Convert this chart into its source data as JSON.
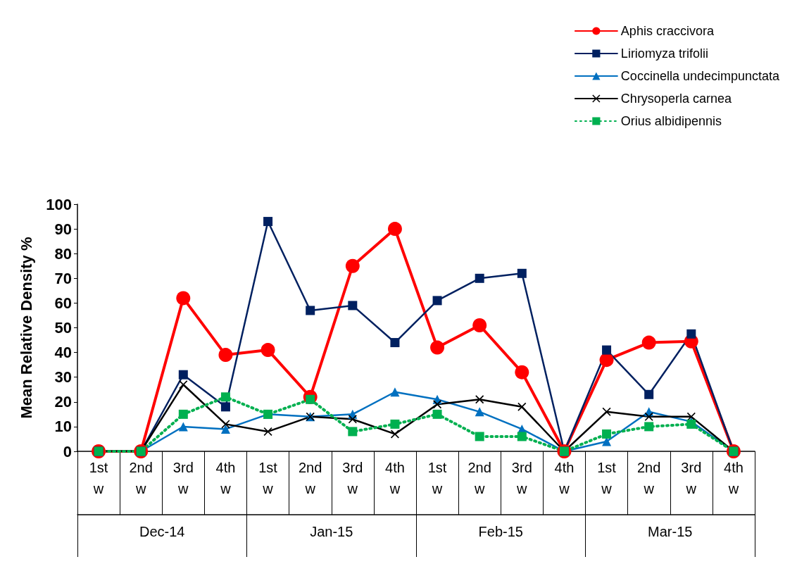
{
  "chart_data": {
    "type": "line",
    "ylabel": "Mean Relative Density %",
    "categories": [
      "1st w",
      "2nd w",
      "3rd w",
      "4th w",
      "1st w",
      "2nd w",
      "3rd w",
      "4th w",
      "1st w",
      "2nd w",
      "3rd w",
      "4th w",
      "1st w",
      "2nd w",
      "3rd w",
      "4th w"
    ],
    "annotations": [
      "Dec-14",
      "Jan-15",
      "Feb-15",
      "Mar-15"
    ],
    "series": [
      {
        "name": "Aphis craccivora",
        "color": "#ff0000",
        "marker": "circle",
        "line_style": "solid",
        "values": [
          0,
          0,
          62,
          39,
          41,
          22,
          75,
          90,
          42,
          51,
          32,
          0,
          37,
          44,
          44.5,
          0
        ]
      },
      {
        "name": "Liriomyza trifolii",
        "color": "#002060",
        "marker": "square",
        "line_style": "solid",
        "values": [
          0,
          0,
          31,
          18,
          93,
          57,
          59,
          44,
          61,
          70,
          72,
          0,
          41,
          23,
          47.5,
          0
        ]
      },
      {
        "name": "Coccinella undecimpunctata",
        "color": "#0070c0",
        "marker": "triangle",
        "line_style": "solid",
        "values": [
          0,
          0,
          10,
          9,
          15,
          14,
          15,
          24,
          21,
          16,
          9,
          0,
          4,
          16,
          12,
          0
        ]
      },
      {
        "name": "Chrysoperla carnea",
        "color": "#000000",
        "marker": "cross",
        "line_style": "solid",
        "values": [
          0,
          0,
          27,
          11,
          8,
          14,
          13,
          7,
          19,
          21,
          18,
          0,
          16,
          14,
          14,
          0
        ]
      },
      {
        "name": "Orius albidipennis",
        "color": "#00b050",
        "marker": "square",
        "line_style": "dotted",
        "values": [
          0,
          0,
          15,
          22,
          15,
          21,
          8,
          11,
          15,
          6,
          6,
          0,
          7,
          10,
          11,
          0
        ]
      }
    ],
    "ylim": [
      0,
      100
    ],
    "yticks": [
      0,
      10,
      20,
      30,
      40,
      50,
      60,
      70,
      80,
      90,
      100
    ],
    "grid": false,
    "legend": "top right"
  }
}
